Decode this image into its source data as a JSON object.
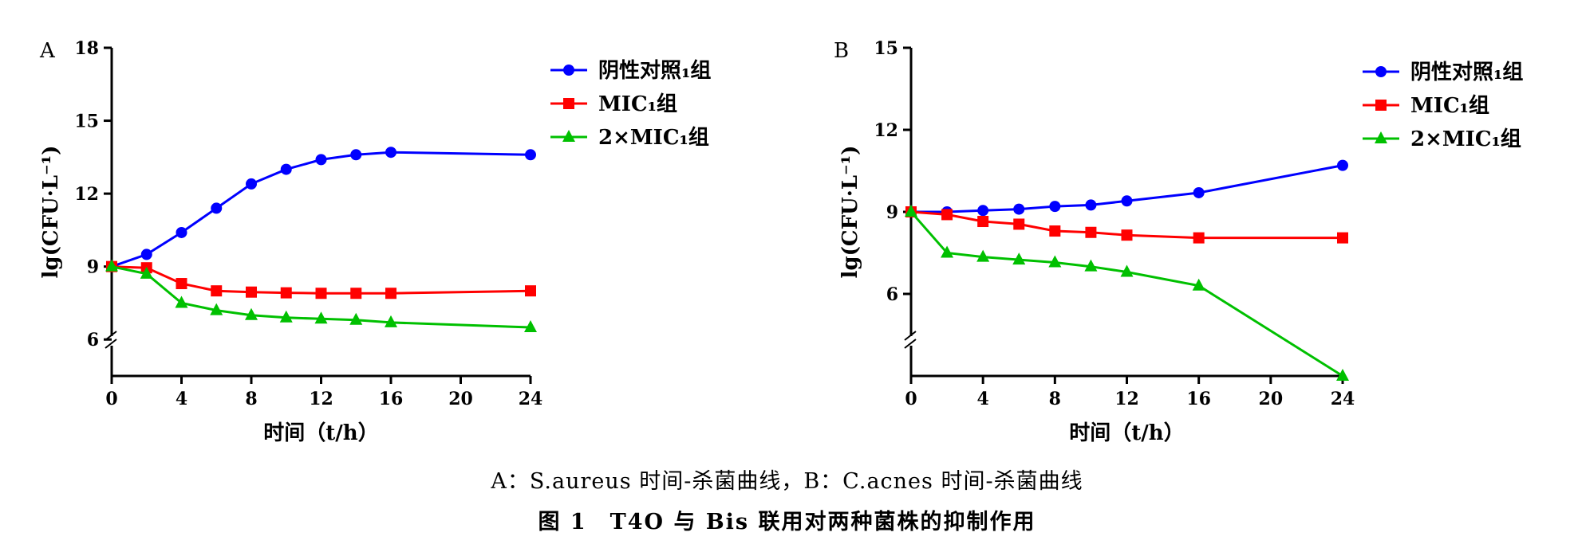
{
  "colors": {
    "negative": "#0000ff",
    "mic": "#ff0000",
    "mic2": "#00c000",
    "axis": "#000000"
  },
  "chart_data": [
    {
      "panel": "A",
      "type": "line",
      "xlabel": "时间（t/h）",
      "ylabel": "lg(CFU·L⁻¹)",
      "xlim": [
        0,
        24
      ],
      "ylim": [
        4.5,
        18
      ],
      "axis_break": true,
      "xticks": [
        "0",
        "4",
        "8",
        "12",
        "16",
        "20",
        "24"
      ],
      "yticks": [
        "6",
        "9",
        "12",
        "15",
        "18"
      ],
      "legend_position": "top-right",
      "series": [
        {
          "name": "阴性对照₁组",
          "marker": "circle",
          "color_key": "negative",
          "points": [
            [
              0,
              9.0
            ],
            [
              2,
              9.5
            ],
            [
              4,
              10.4
            ],
            [
              6,
              11.4
            ],
            [
              8,
              12.4
            ],
            [
              10,
              13.0
            ],
            [
              12,
              13.4
            ],
            [
              14,
              13.6
            ],
            [
              16,
              13.7
            ],
            [
              24,
              13.6
            ]
          ]
        },
        {
          "name": "MIC₁组",
          "marker": "square",
          "color_key": "mic",
          "points": [
            [
              0,
              9.0
            ],
            [
              2,
              8.95
            ],
            [
              4,
              8.3
            ],
            [
              6,
              8.0
            ],
            [
              8,
              7.95
            ],
            [
              10,
              7.92
            ],
            [
              12,
              7.9
            ],
            [
              14,
              7.9
            ],
            [
              16,
              7.9
            ],
            [
              24,
              8.0
            ]
          ]
        },
        {
          "name": "2×MIC₁组",
          "marker": "triangle",
          "color_key": "mic2",
          "points": [
            [
              0,
              9.0
            ],
            [
              2,
              8.7
            ],
            [
              4,
              7.5
            ],
            [
              6,
              7.2
            ],
            [
              8,
              7.0
            ],
            [
              10,
              6.9
            ],
            [
              12,
              6.85
            ],
            [
              14,
              6.8
            ],
            [
              16,
              6.7
            ],
            [
              24,
              6.5
            ]
          ]
        }
      ]
    },
    {
      "panel": "B",
      "type": "line",
      "xlabel": "时间（t/h）",
      "ylabel": "lg(CFU·L⁻¹)",
      "xlim": [
        0,
        24
      ],
      "ylim": [
        3,
        15
      ],
      "axis_break": true,
      "xticks": [
        "0",
        "4",
        "8",
        "12",
        "16",
        "20",
        "24"
      ],
      "yticks": [
        "6",
        "9",
        "12",
        "15"
      ],
      "legend_position": "top-right",
      "series": [
        {
          "name": "阴性对照₁组",
          "marker": "circle",
          "color_key": "negative",
          "points": [
            [
              0,
              9.0
            ],
            [
              2,
              9.0
            ],
            [
              4,
              9.05
            ],
            [
              6,
              9.1
            ],
            [
              8,
              9.2
            ],
            [
              10,
              9.25
            ],
            [
              12,
              9.4
            ],
            [
              16,
              9.7
            ],
            [
              24,
              10.7
            ]
          ]
        },
        {
          "name": "MIC₁组",
          "marker": "square",
          "color_key": "mic",
          "points": [
            [
              0,
              9.0
            ],
            [
              2,
              8.9
            ],
            [
              4,
              8.65
            ],
            [
              6,
              8.55
            ],
            [
              8,
              8.3
            ],
            [
              10,
              8.25
            ],
            [
              12,
              8.15
            ],
            [
              16,
              8.05
            ],
            [
              24,
              8.05
            ]
          ]
        },
        {
          "name": "2×MIC₁组",
          "marker": "triangle",
          "color_key": "mic2",
          "points": [
            [
              0,
              9.0
            ],
            [
              2,
              7.5
            ],
            [
              4,
              7.35
            ],
            [
              6,
              7.25
            ],
            [
              8,
              7.15
            ],
            [
              10,
              7.0
            ],
            [
              12,
              6.8
            ],
            [
              16,
              6.3
            ],
            [
              24,
              3.0
            ]
          ]
        }
      ]
    }
  ],
  "captions": {
    "sub": "A：S.aureus 时间-杀菌曲线，B：C.acnes 时间-杀菌曲线",
    "main": "图 1　T4O 与 Bis 联用对两种菌株的抑制作用"
  }
}
